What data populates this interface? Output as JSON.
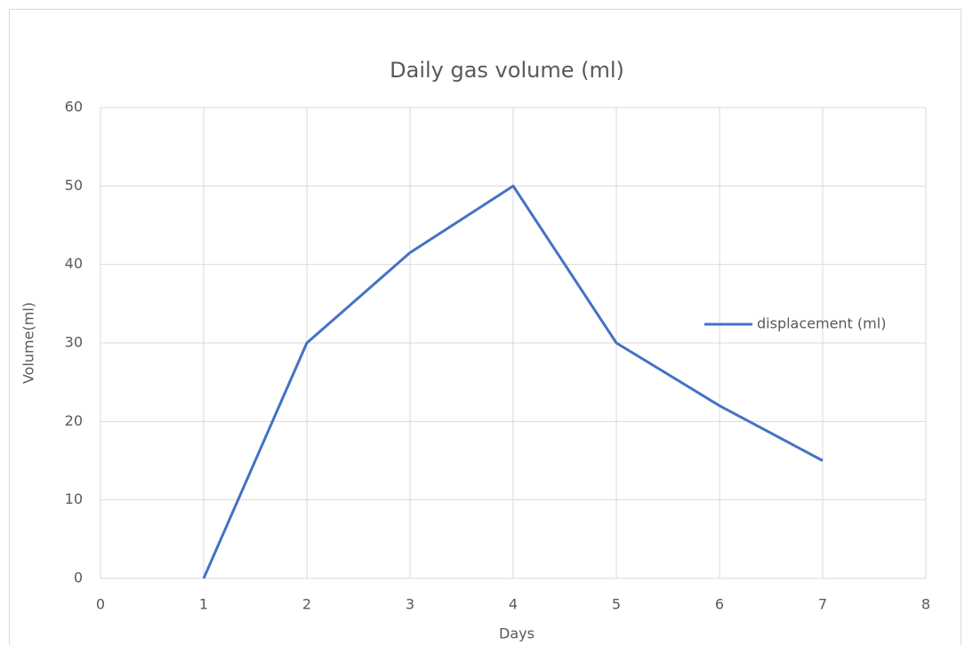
{
  "chart_data": {
    "type": "line",
    "title": "Daily gas volume (ml)",
    "x_label": "Days",
    "y_label": "Volume(ml)",
    "x": [
      1,
      2,
      3,
      4,
      5,
      6,
      7
    ],
    "series": [
      {
        "name": "displacement (ml)",
        "color": "#4472c4",
        "values": [
          0,
          30,
          41.5,
          50,
          30,
          22,
          15
        ]
      }
    ],
    "xlim": [
      0,
      8
    ],
    "xticks": [
      0,
      1,
      2,
      3,
      4,
      5,
      6,
      7,
      8
    ],
    "ylim": [
      0,
      60
    ],
    "yticks": [
      0,
      10,
      20,
      30,
      40,
      50,
      60
    ],
    "grid": true,
    "legend": "right"
  }
}
